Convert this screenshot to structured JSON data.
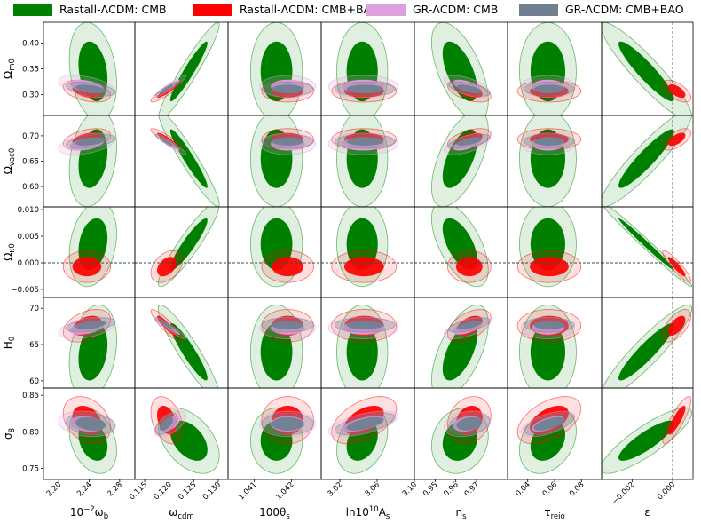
{
  "legend": {
    "items": [
      {
        "label": "Rastall-ΛCDM: CMB",
        "color": "#008000"
      },
      {
        "label": "Rastall-ΛCDM: CMB+BAO",
        "color": "#ff0000"
      },
      {
        "label": "GR-ΛCDM: CMB",
        "color": "#dda0dd"
      },
      {
        "label": "GR-ΛCDM: CMB+BAO",
        "color": "#708090"
      }
    ]
  },
  "colors": {
    "rastall_cmb": "#008000",
    "rastall_cmb_bao": "#ff0000",
    "gr_cmb": "#dda0dd",
    "gr_cmb_bao": "#708090",
    "reference_line": "#2f4f4f"
  },
  "chart_data": {
    "type": "triangle-contour",
    "title": "",
    "series": [
      "Rastall-ΛCDM: CMB",
      "Rastall-ΛCDM: CMB+BAO",
      "GR-ΛCDM: CMB",
      "GR-ΛCDM: CMB+BAO"
    ],
    "x_parameters": [
      {
        "key": "omega_b",
        "label_main": "10",
        "label_sup": "−2",
        "label_rest": "ω",
        "label_sub": "b",
        "range": [
          2.18,
          2.3
        ],
        "ticks": [
          2.2,
          2.24,
          2.28
        ],
        "tick_labels": [
          "2.20",
          "2.24",
          "2.28"
        ]
      },
      {
        "key": "omega_cdm",
        "label_main": "ω",
        "label_sub": "cdm",
        "range": [
          0.113,
          0.132
        ],
        "ticks": [
          0.115,
          0.12,
          0.125,
          0.13
        ],
        "tick_labels": [
          "0.115",
          "0.120",
          "0.125",
          "0.130"
        ]
      },
      {
        "key": "100theta_s",
        "label_main": "100θ",
        "label_sub": "s",
        "range": [
          1.0403,
          1.0428
        ],
        "ticks": [
          1.041,
          1.042
        ],
        "tick_labels": [
          "1.041",
          "1.042"
        ]
      },
      {
        "key": "ln10As",
        "label_main": "ln10",
        "label_sup": "10",
        "label_rest": "A",
        "label_sub": "s",
        "range": [
          3.0,
          3.1
        ],
        "ticks": [
          3.02,
          3.06,
          3.1
        ],
        "tick_labels": [
          "3.02",
          "3.06",
          "3.10"
        ]
      },
      {
        "key": "n_s",
        "label_main": "n",
        "label_sub": "s",
        "range": [
          0.94,
          0.985
        ],
        "ticks": [
          0.95,
          0.96,
          0.97
        ],
        "tick_labels": [
          "0.95",
          "0.96",
          "0.97"
        ]
      },
      {
        "key": "tau_reio",
        "label_main": "τ",
        "label_sub": "reio",
        "range": [
          0.025,
          0.095
        ],
        "ticks": [
          0.04,
          0.06,
          0.08
        ],
        "tick_labels": [
          "0.04",
          "0.06",
          "0.08"
        ]
      },
      {
        "key": "epsilon",
        "label_main": "ε",
        "range": [
          -0.0035,
          0.001
        ],
        "ticks": [
          -0.002,
          0.0
        ],
        "tick_labels": [
          "−0.002",
          "0.000"
        ]
      }
    ],
    "y_parameters": [
      {
        "key": "Omega_m0",
        "label_main": "Ω",
        "label_sub": "m0",
        "range": [
          0.26,
          0.44
        ],
        "ticks": [
          0.3,
          0.35,
          0.4
        ],
        "tick_labels": [
          "0.30",
          "0.35",
          "0.40"
        ]
      },
      {
        "key": "Omega_vac0",
        "label_main": "Ω",
        "label_sub": "vac0",
        "range": [
          0.56,
          0.74
        ],
        "ticks": [
          0.6,
          0.65,
          0.7
        ],
        "tick_labels": [
          "0.60",
          "0.65",
          "0.70"
        ]
      },
      {
        "key": "Omega_k0",
        "label_main": "Ω",
        "label_sub": "κ0",
        "range": [
          -0.0065,
          0.0105
        ],
        "ticks": [
          -0.005,
          0.0,
          0.005,
          0.01
        ],
        "tick_labels": [
          "−0.005",
          "0.000",
          "0.005",
          "0.010"
        ]
      },
      {
        "key": "H0",
        "label_main": "H",
        "label_sub": "0",
        "range": [
          59,
          71.5
        ],
        "ticks": [
          60,
          65,
          70
        ],
        "tick_labels": [
          "60",
          "65",
          "70"
        ]
      },
      {
        "key": "sigma8",
        "label_main": "σ",
        "label_sub": "8",
        "range": [
          0.735,
          0.86
        ],
        "ticks": [
          0.75,
          0.8,
          0.85
        ],
        "tick_labels": [
          "0.75",
          "0.80",
          "0.85"
        ]
      }
    ],
    "reference_lines": [
      {
        "orientation": "horizontal",
        "row": "Omega_k0",
        "value": 0.0
      },
      {
        "orientation": "vertical",
        "column": "epsilon",
        "value": 0.0
      }
    ],
    "contours": {
      "rastall_cmb": {
        "mean": {
          "omega_b": 2.245,
          "omega_cdm": 0.124,
          "100theta_s": 1.0416,
          "ln10As": 3.044,
          "n_s": 0.962,
          "tau_reio": 0.055,
          "epsilon": -0.0013,
          "Omega_m0": 0.345,
          "Omega_vac0": 0.655,
          "Omega_k0": 0.0035,
          "H0": 64.0,
          "sigma8": 0.788
        },
        "sigma": {
          "omega_b": 0.0125,
          "omega_cdm": 0.0025,
          "100theta_s": 0.00028,
          "ln10As": 0.011,
          "n_s": 0.0055,
          "tau_reio": 0.0085,
          "epsilon": 0.0009,
          "Omega_m0": 0.038,
          "Omega_vac0": 0.038,
          "Omega_k0": 0.0032,
          "H0": 2.6,
          "sigma8": 0.018
        }
      },
      "rastall_cmb_bao": {
        "mean": {
          "omega_b": 2.237,
          "omega_cdm": 0.1195,
          "100theta_s": 1.0419,
          "ln10As": 3.046,
          "n_s": 0.9665,
          "tau_reio": 0.056,
          "epsilon": 0.0002,
          "Omega_m0": 0.307,
          "Omega_vac0": 0.693,
          "Omega_k0": -0.0007,
          "H0": 67.6,
          "sigma8": 0.816
        },
        "sigma": {
          "omega_b": 0.0125,
          "omega_cdm": 0.0013,
          "100theta_s": 0.00028,
          "ln10As": 0.014,
          "n_s": 0.0042,
          "tau_reio": 0.0095,
          "epsilon": 0.00028,
          "Omega_m0": 0.0085,
          "Omega_vac0": 0.0085,
          "Omega_k0": 0.0012,
          "H0": 0.9,
          "sigma8": 0.013
        }
      },
      "gr_cmb": {
        "mean": {
          "omega_b": 2.237,
          "omega_cdm": 0.1202,
          "100theta_s": 1.0419,
          "ln10As": 3.045,
          "n_s": 0.9655,
          "tau_reio": 0.055,
          "epsilon": 0.0,
          "Omega_m0": 0.316,
          "Omega_vac0": 0.684,
          "Omega_k0": 0.0,
          "H0": 67.3,
          "sigma8": 0.811
        },
        "sigma": {
          "omega_b": 0.015,
          "omega_cdm": 0.0013,
          "100theta_s": 0.0003,
          "ln10As": 0.015,
          "n_s": 0.0045,
          "tau_reio": 0.008,
          "epsilon": 0.0,
          "Omega_m0": 0.0085,
          "Omega_vac0": 0.0085,
          "Omega_k0": 0.0,
          "H0": 0.6,
          "sigma8": 0.007
        }
      },
      "gr_cmb_bao": {
        "mean": {
          "omega_b": 2.242,
          "omega_cdm": 0.1194,
          "100theta_s": 1.0419,
          "ln10As": 3.047,
          "n_s": 0.9665,
          "tau_reio": 0.056,
          "epsilon": 0.0,
          "Omega_m0": 0.311,
          "Omega_vac0": 0.689,
          "Omega_k0": 0.0,
          "H0": 67.7,
          "sigma8": 0.811
        },
        "sigma": {
          "omega_b": 0.013,
          "omega_cdm": 0.0009,
          "100theta_s": 0.00028,
          "ln10As": 0.013,
          "n_s": 0.004,
          "tau_reio": 0.0075,
          "epsilon": 0.0,
          "Omega_m0": 0.0055,
          "Omega_vac0": 0.0055,
          "Omega_k0": 0.0,
          "H0": 0.4,
          "sigma8": 0.006
        }
      }
    },
    "correlations": {
      "rastall_cmb": {
        "Omega_m0": [
          -0.25,
          0.95,
          0.0,
          0.0,
          -0.6,
          0.0,
          -0.92
        ],
        "Omega_vac0": [
          0.25,
          -0.95,
          0.0,
          0.0,
          0.6,
          0.0,
          0.92
        ],
        "Omega_k0": [
          0.25,
          0.92,
          0.0,
          0.0,
          -0.6,
          0.0,
          -0.99
        ],
        "H0": [
          0.25,
          -0.92,
          0.0,
          0.0,
          0.6,
          0.0,
          0.92
        ],
        "sigma8": [
          -0.3,
          -0.45,
          0.0,
          0.3,
          0.15,
          0.3,
          0.85
        ]
      },
      "rastall_cmb_bao": {
        "Omega_m0": [
          -0.4,
          0.9,
          0.0,
          0.0,
          -0.5,
          0.0,
          -0.6
        ],
        "Omega_vac0": [
          0.4,
          -0.9,
          0.0,
          0.0,
          0.5,
          0.0,
          0.6
        ],
        "Omega_k0": [
          0.0,
          0.4,
          0.0,
          0.0,
          0.0,
          0.0,
          -0.9
        ],
        "H0": [
          0.4,
          -0.9,
          0.0,
          0.0,
          0.5,
          0.0,
          0.6
        ],
        "sigma8": [
          -0.3,
          -0.35,
          0.0,
          0.5,
          0.2,
          0.5,
          0.85
        ]
      },
      "gr_cmb": {
        "Omega_m0": [
          -0.45,
          0.95,
          0.0,
          0.0,
          -0.6,
          0.0,
          0.0
        ],
        "Omega_vac0": [
          0.45,
          -0.95,
          0.0,
          0.0,
          0.6,
          0.0,
          0.0
        ],
        "Omega_k0": [
          0.0,
          0.0,
          0.0,
          0.0,
          0.0,
          0.0,
          0.0
        ],
        "H0": [
          0.45,
          -0.95,
          0.0,
          0.0,
          0.6,
          0.0,
          0.0
        ],
        "sigma8": [
          -0.2,
          0.6,
          0.0,
          0.6,
          0.25,
          0.6,
          0.0
        ]
      },
      "gr_cmb_bao": {
        "Omega_m0": [
          -0.45,
          0.95,
          0.0,
          0.0,
          -0.6,
          0.0,
          0.0
        ],
        "Omega_vac0": [
          0.45,
          -0.95,
          0.0,
          0.0,
          0.6,
          0.0,
          0.0
        ],
        "Omega_k0": [
          0.0,
          0.0,
          0.0,
          0.0,
          0.0,
          0.0,
          0.0
        ],
        "H0": [
          0.45,
          -0.95,
          0.0,
          0.0,
          0.6,
          0.0,
          0.0
        ],
        "sigma8": [
          -0.2,
          0.6,
          0.0,
          0.6,
          0.25,
          0.6,
          0.0
        ]
      }
    }
  }
}
